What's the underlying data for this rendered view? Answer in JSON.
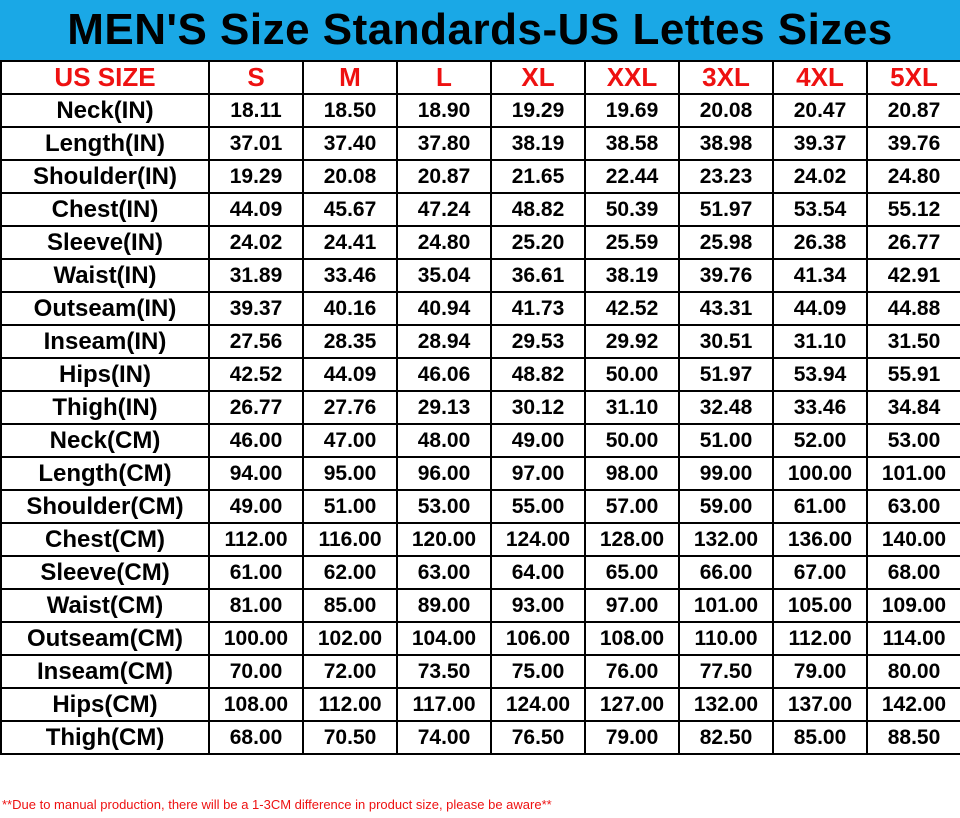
{
  "title": "MEN'S Size Standards-US Lettes Sizes",
  "colors": {
    "title_background": "#1aa8e6",
    "header_text": "#ee1111",
    "note_text": "#ee1111"
  },
  "columns": [
    "US SIZE",
    "S",
    "M",
    "L",
    "XL",
    "XXL",
    "3XL",
    "4XL",
    "5XL"
  ],
  "rows": [
    {
      "label": "Neck(IN)",
      "values": [
        "18.11",
        "18.50",
        "18.90",
        "19.29",
        "19.69",
        "20.08",
        "20.47",
        "20.87"
      ]
    },
    {
      "label": "Length(IN)",
      "values": [
        "37.01",
        "37.40",
        "37.80",
        "38.19",
        "38.58",
        "38.98",
        "39.37",
        "39.76"
      ]
    },
    {
      "label": "Shoulder(IN)",
      "values": [
        "19.29",
        "20.08",
        "20.87",
        "21.65",
        "22.44",
        "23.23",
        "24.02",
        "24.80"
      ]
    },
    {
      "label": "Chest(IN)",
      "values": [
        "44.09",
        "45.67",
        "47.24",
        "48.82",
        "50.39",
        "51.97",
        "53.54",
        "55.12"
      ]
    },
    {
      "label": "Sleeve(IN)",
      "values": [
        "24.02",
        "24.41",
        "24.80",
        "25.20",
        "25.59",
        "25.98",
        "26.38",
        "26.77"
      ]
    },
    {
      "label": "Waist(IN)",
      "values": [
        "31.89",
        "33.46",
        "35.04",
        "36.61",
        "38.19",
        "39.76",
        "41.34",
        "42.91"
      ]
    },
    {
      "label": "Outseam(IN)",
      "values": [
        "39.37",
        "40.16",
        "40.94",
        "41.73",
        "42.52",
        "43.31",
        "44.09",
        "44.88"
      ]
    },
    {
      "label": "Inseam(IN)",
      "values": [
        "27.56",
        "28.35",
        "28.94",
        "29.53",
        "29.92",
        "30.51",
        "31.10",
        "31.50"
      ]
    },
    {
      "label": "Hips(IN)",
      "values": [
        "42.52",
        "44.09",
        "46.06",
        "48.82",
        "50.00",
        "51.97",
        "53.94",
        "55.91"
      ]
    },
    {
      "label": "Thigh(IN)",
      "values": [
        "26.77",
        "27.76",
        "29.13",
        "30.12",
        "31.10",
        "32.48",
        "33.46",
        "34.84"
      ]
    },
    {
      "label": "Neck(CM)",
      "values": [
        "46.00",
        "47.00",
        "48.00",
        "49.00",
        "50.00",
        "51.00",
        "52.00",
        "53.00"
      ]
    },
    {
      "label": "Length(CM)",
      "values": [
        "94.00",
        "95.00",
        "96.00",
        "97.00",
        "98.00",
        "99.00",
        "100.00",
        "101.00"
      ]
    },
    {
      "label": "Shoulder(CM)",
      "values": [
        "49.00",
        "51.00",
        "53.00",
        "55.00",
        "57.00",
        "59.00",
        "61.00",
        "63.00"
      ]
    },
    {
      "label": "Chest(CM)",
      "values": [
        "112.00",
        "116.00",
        "120.00",
        "124.00",
        "128.00",
        "132.00",
        "136.00",
        "140.00"
      ]
    },
    {
      "label": "Sleeve(CM)",
      "values": [
        "61.00",
        "62.00",
        "63.00",
        "64.00",
        "65.00",
        "66.00",
        "67.00",
        "68.00"
      ]
    },
    {
      "label": "Waist(CM)",
      "values": [
        "81.00",
        "85.00",
        "89.00",
        "93.00",
        "97.00",
        "101.00",
        "105.00",
        "109.00"
      ]
    },
    {
      "label": "Outseam(CM)",
      "values": [
        "100.00",
        "102.00",
        "104.00",
        "106.00",
        "108.00",
        "110.00",
        "112.00",
        "114.00"
      ]
    },
    {
      "label": "Inseam(CM)",
      "values": [
        "70.00",
        "72.00",
        "73.50",
        "75.00",
        "76.00",
        "77.50",
        "79.00",
        "80.00"
      ]
    },
    {
      "label": "Hips(CM)",
      "values": [
        "108.00",
        "112.00",
        "117.00",
        "124.00",
        "127.00",
        "132.00",
        "137.00",
        "142.00"
      ]
    },
    {
      "label": "Thigh(CM)",
      "values": [
        "68.00",
        "70.50",
        "74.00",
        "76.50",
        "79.00",
        "82.50",
        "85.00",
        "88.50"
      ]
    }
  ],
  "note": "**Due to manual production, there will be a 1-3CM difference in product size, please be aware**"
}
